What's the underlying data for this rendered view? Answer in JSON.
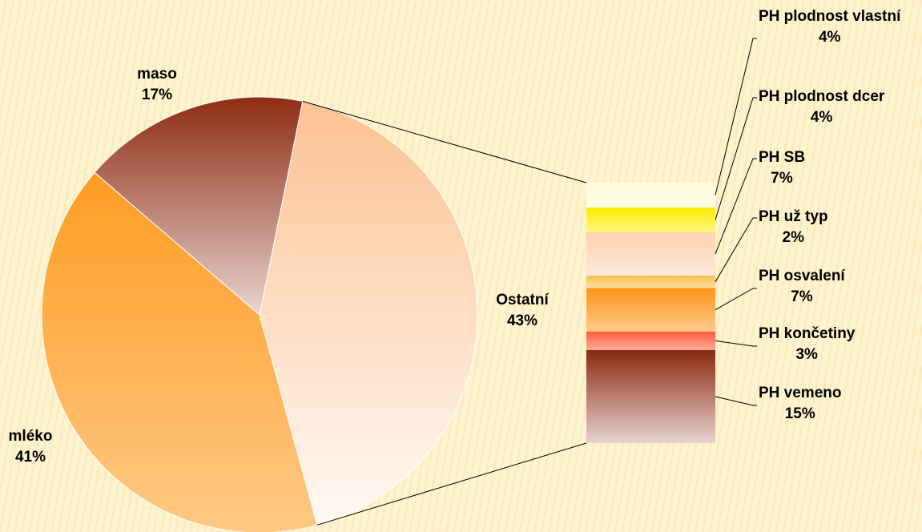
{
  "chart_data": {
    "type": "pie-of-bar",
    "categories": [
      "Ostatní",
      "mléko",
      "maso"
    ],
    "values": [
      43,
      41,
      17
    ],
    "value_labels": [
      "43%",
      "41%",
      "17%"
    ],
    "colors": [
      "#fcc293",
      "#ff9c22",
      "#8e2c12"
    ],
    "breakdown": {
      "categories": [
        "PH plodnost vlastní",
        "PH plodnost dcer",
        "PH SB",
        "PH už typ",
        "PH osvalení",
        "PH končetiny",
        "PH vemeno"
      ],
      "values": [
        4,
        4,
        7,
        2,
        7,
        3,
        15
      ],
      "value_labels": [
        "4%",
        "4%",
        "7%",
        "2%",
        "7%",
        "3%",
        "15%"
      ],
      "colors": [
        "#fffbd8",
        "#ffec00",
        "#fcd2b0",
        "#f7c04a",
        "#ff9418",
        "#ff5a38",
        "#8a2810"
      ]
    }
  }
}
